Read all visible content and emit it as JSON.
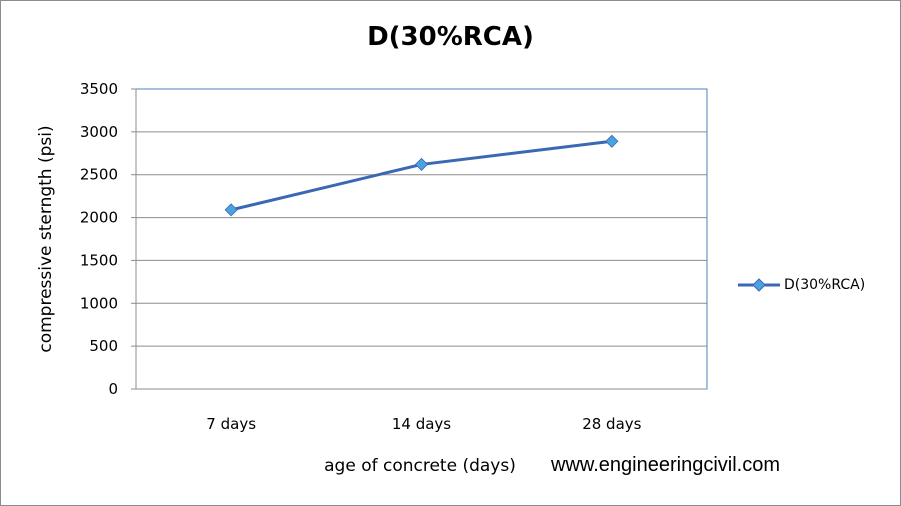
{
  "chart_data": {
    "type": "line",
    "title": "D(30%RCA)",
    "xlabel": "age of concrete (days)",
    "ylabel": "compressive sterngth (psi)",
    "categories": [
      "7 days",
      "14 days",
      "28 days"
    ],
    "series": [
      {
        "name": "D(30%RCA)",
        "values": [
          2090,
          2620,
          2890
        ],
        "color": "#3b68b5",
        "marker_color": "#4aa3df",
        "marker": "diamond"
      }
    ],
    "ylim": [
      0,
      3500
    ],
    "yticks": [
      0,
      500,
      1000,
      1500,
      2000,
      2500,
      3000,
      3500
    ],
    "grid": true,
    "legend_position": "right"
  },
  "watermark": "www.engineeringcivil.com"
}
